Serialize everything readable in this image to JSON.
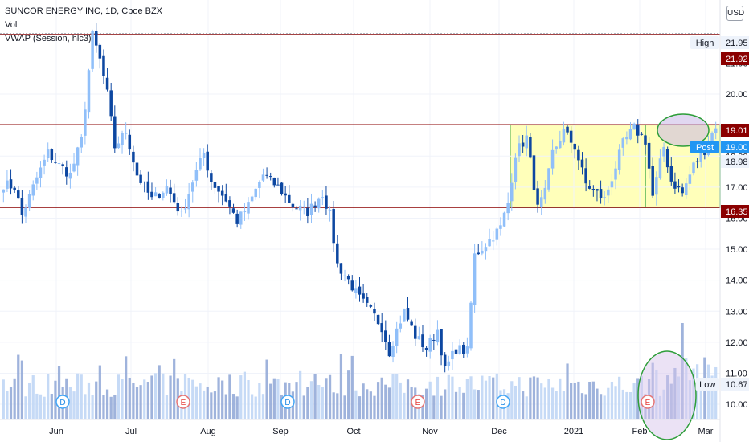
{
  "header": {
    "symbol_line": "SUNCOR ENERGY INC, 1D, Cboe BZX",
    "vol_label": "Vol",
    "vwap_label": "VWAP (Session, hlc3)",
    "currency_button": "USD"
  },
  "colors": {
    "up": "#90bff9",
    "down": "#0d47a1",
    "resistance": "#8b0000",
    "box_fill": "#ffffa3",
    "box_stroke": "#4caf50",
    "post": "#2196f3",
    "volume": "#8ea6d6"
  },
  "chart_data": {
    "type": "candlestick",
    "ylim": [
      9.6,
      22.6
    ],
    "y_ticks": [
      10.0,
      11.0,
      12.0,
      13.0,
      14.0,
      15.0,
      16.0,
      17.0,
      18.0,
      20.0,
      21.0
    ],
    "x_month_labels": [
      "Jun",
      "Jul",
      "Aug",
      "Sep",
      "Oct",
      "Nov",
      "Dec",
      "2021",
      "Feb",
      "Mar"
    ],
    "price_tags": [
      {
        "label": "High",
        "value": "21.95",
        "kind": "light"
      },
      {
        "label": "",
        "value": "21.92",
        "kind": "red"
      },
      {
        "label": "",
        "value": "19.01",
        "kind": "red"
      },
      {
        "label": "Post",
        "value": "19.00",
        "kind": "blue"
      },
      {
        "label": "",
        "value": "18.98",
        "kind": "light"
      },
      {
        "label": "",
        "value": "16.35",
        "kind": "red"
      },
      {
        "label": "Low",
        "value": "10.67",
        "kind": "light"
      }
    ],
    "horizontal_lines": [
      21.92,
      19.01,
      16.35
    ],
    "range_box": {
      "top": 19.01,
      "bottom": 16.35
    },
    "event_markers": [
      {
        "letter": "D",
        "month": "Jun"
      },
      {
        "letter": "E",
        "month": "Jul"
      },
      {
        "letter": "D",
        "month": "Sep"
      },
      {
        "letter": "E",
        "month": "Nov"
      },
      {
        "letter": "D",
        "month": "Dec"
      },
      {
        "letter": "E",
        "month": "Feb"
      }
    ],
    "waypoints": [
      [
        0,
        17.1
      ],
      [
        3,
        17.0
      ],
      [
        5,
        16.1
      ],
      [
        9,
        17.3
      ],
      [
        12,
        18.1
      ],
      [
        15,
        17.7
      ],
      [
        18,
        17.4
      ],
      [
        21,
        18.5
      ],
      [
        24,
        21.9
      ],
      [
        26,
        21.1
      ],
      [
        28,
        20.0
      ],
      [
        30,
        18.3
      ],
      [
        33,
        18.8
      ],
      [
        36,
        17.4
      ],
      [
        40,
        16.6
      ],
      [
        44,
        17.0
      ],
      [
        48,
        16.1
      ],
      [
        51,
        17.2
      ],
      [
        54,
        18.1
      ],
      [
        56,
        17.2
      ],
      [
        60,
        16.6
      ],
      [
        63,
        15.9
      ],
      [
        66,
        16.4
      ],
      [
        70,
        17.4
      ],
      [
        74,
        17.0
      ],
      [
        78,
        16.4
      ],
      [
        82,
        16.2
      ],
      [
        86,
        16.8
      ],
      [
        88,
        16.1
      ],
      [
        90,
        14.5
      ],
      [
        93,
        14.0
      ],
      [
        96,
        13.4
      ],
      [
        99,
        13.0
      ],
      [
        102,
        12.5
      ],
      [
        104,
        11.7
      ],
      [
        106,
        12.4
      ],
      [
        108,
        13.0
      ],
      [
        111,
        12.2
      ],
      [
        114,
        11.8
      ],
      [
        117,
        12.4
      ],
      [
        119,
        11.1
      ],
      [
        122,
        11.8
      ],
      [
        125,
        11.7
      ],
      [
        127,
        14.8
      ],
      [
        131,
        15.3
      ],
      [
        134,
        15.7
      ],
      [
        136,
        16.5
      ],
      [
        138,
        18.1
      ],
      [
        141,
        18.6
      ],
      [
        144,
        16.3
      ],
      [
        146,
        16.8
      ],
      [
        148,
        18.1
      ],
      [
        151,
        18.8
      ],
      [
        154,
        18.3
      ],
      [
        157,
        17.1
      ],
      [
        159,
        16.9
      ],
      [
        162,
        16.6
      ],
      [
        164,
        17.3
      ],
      [
        167,
        18.4
      ],
      [
        170,
        18.9
      ],
      [
        173,
        18.5
      ],
      [
        175,
        16.7
      ],
      [
        178,
        18.3
      ],
      [
        180,
        17.2
      ],
      [
        183,
        16.8
      ],
      [
        186,
        17.7
      ],
      [
        189,
        18.2
      ],
      [
        192,
        19.0
      ]
    ]
  }
}
